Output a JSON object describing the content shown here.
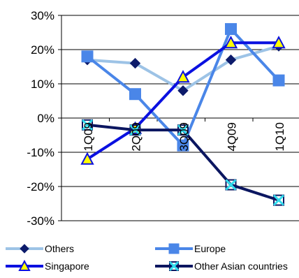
{
  "chart_data": {
    "type": "line",
    "categories": [
      "1Q09",
      "2Q09",
      "3Q09",
      "4Q09",
      "1Q10"
    ],
    "y_ticks": [
      "30%",
      "20%",
      "10%",
      "0%",
      "-10%",
      "-20%",
      "-30%"
    ],
    "ylim": [
      -30,
      30
    ],
    "grid": true,
    "legend_position": "bottom",
    "series": [
      {
        "name": "Others",
        "values": [
          17,
          16,
          8,
          17,
          21
        ],
        "color": "#9DC3E6",
        "marker": "diamond",
        "marker_color": "#0D1B6B"
      },
      {
        "name": "Europe",
        "values": [
          18,
          7,
          -8,
          26,
          11
        ],
        "color": "#4A86E8",
        "marker": "square",
        "marker_color": "#4A86E8"
      },
      {
        "name": "Singapore",
        "values": [
          -12,
          -3,
          12,
          22,
          22
        ],
        "color": "#0A10E0",
        "marker": "triangle",
        "marker_color": "#FFFF00"
      },
      {
        "name": "Other Asian countries",
        "values": [
          -2,
          -3.5,
          -3.5,
          -19.5,
          -24
        ],
        "color": "#0B1660",
        "marker": "x-square",
        "marker_color": "#33DDEE"
      }
    ]
  }
}
